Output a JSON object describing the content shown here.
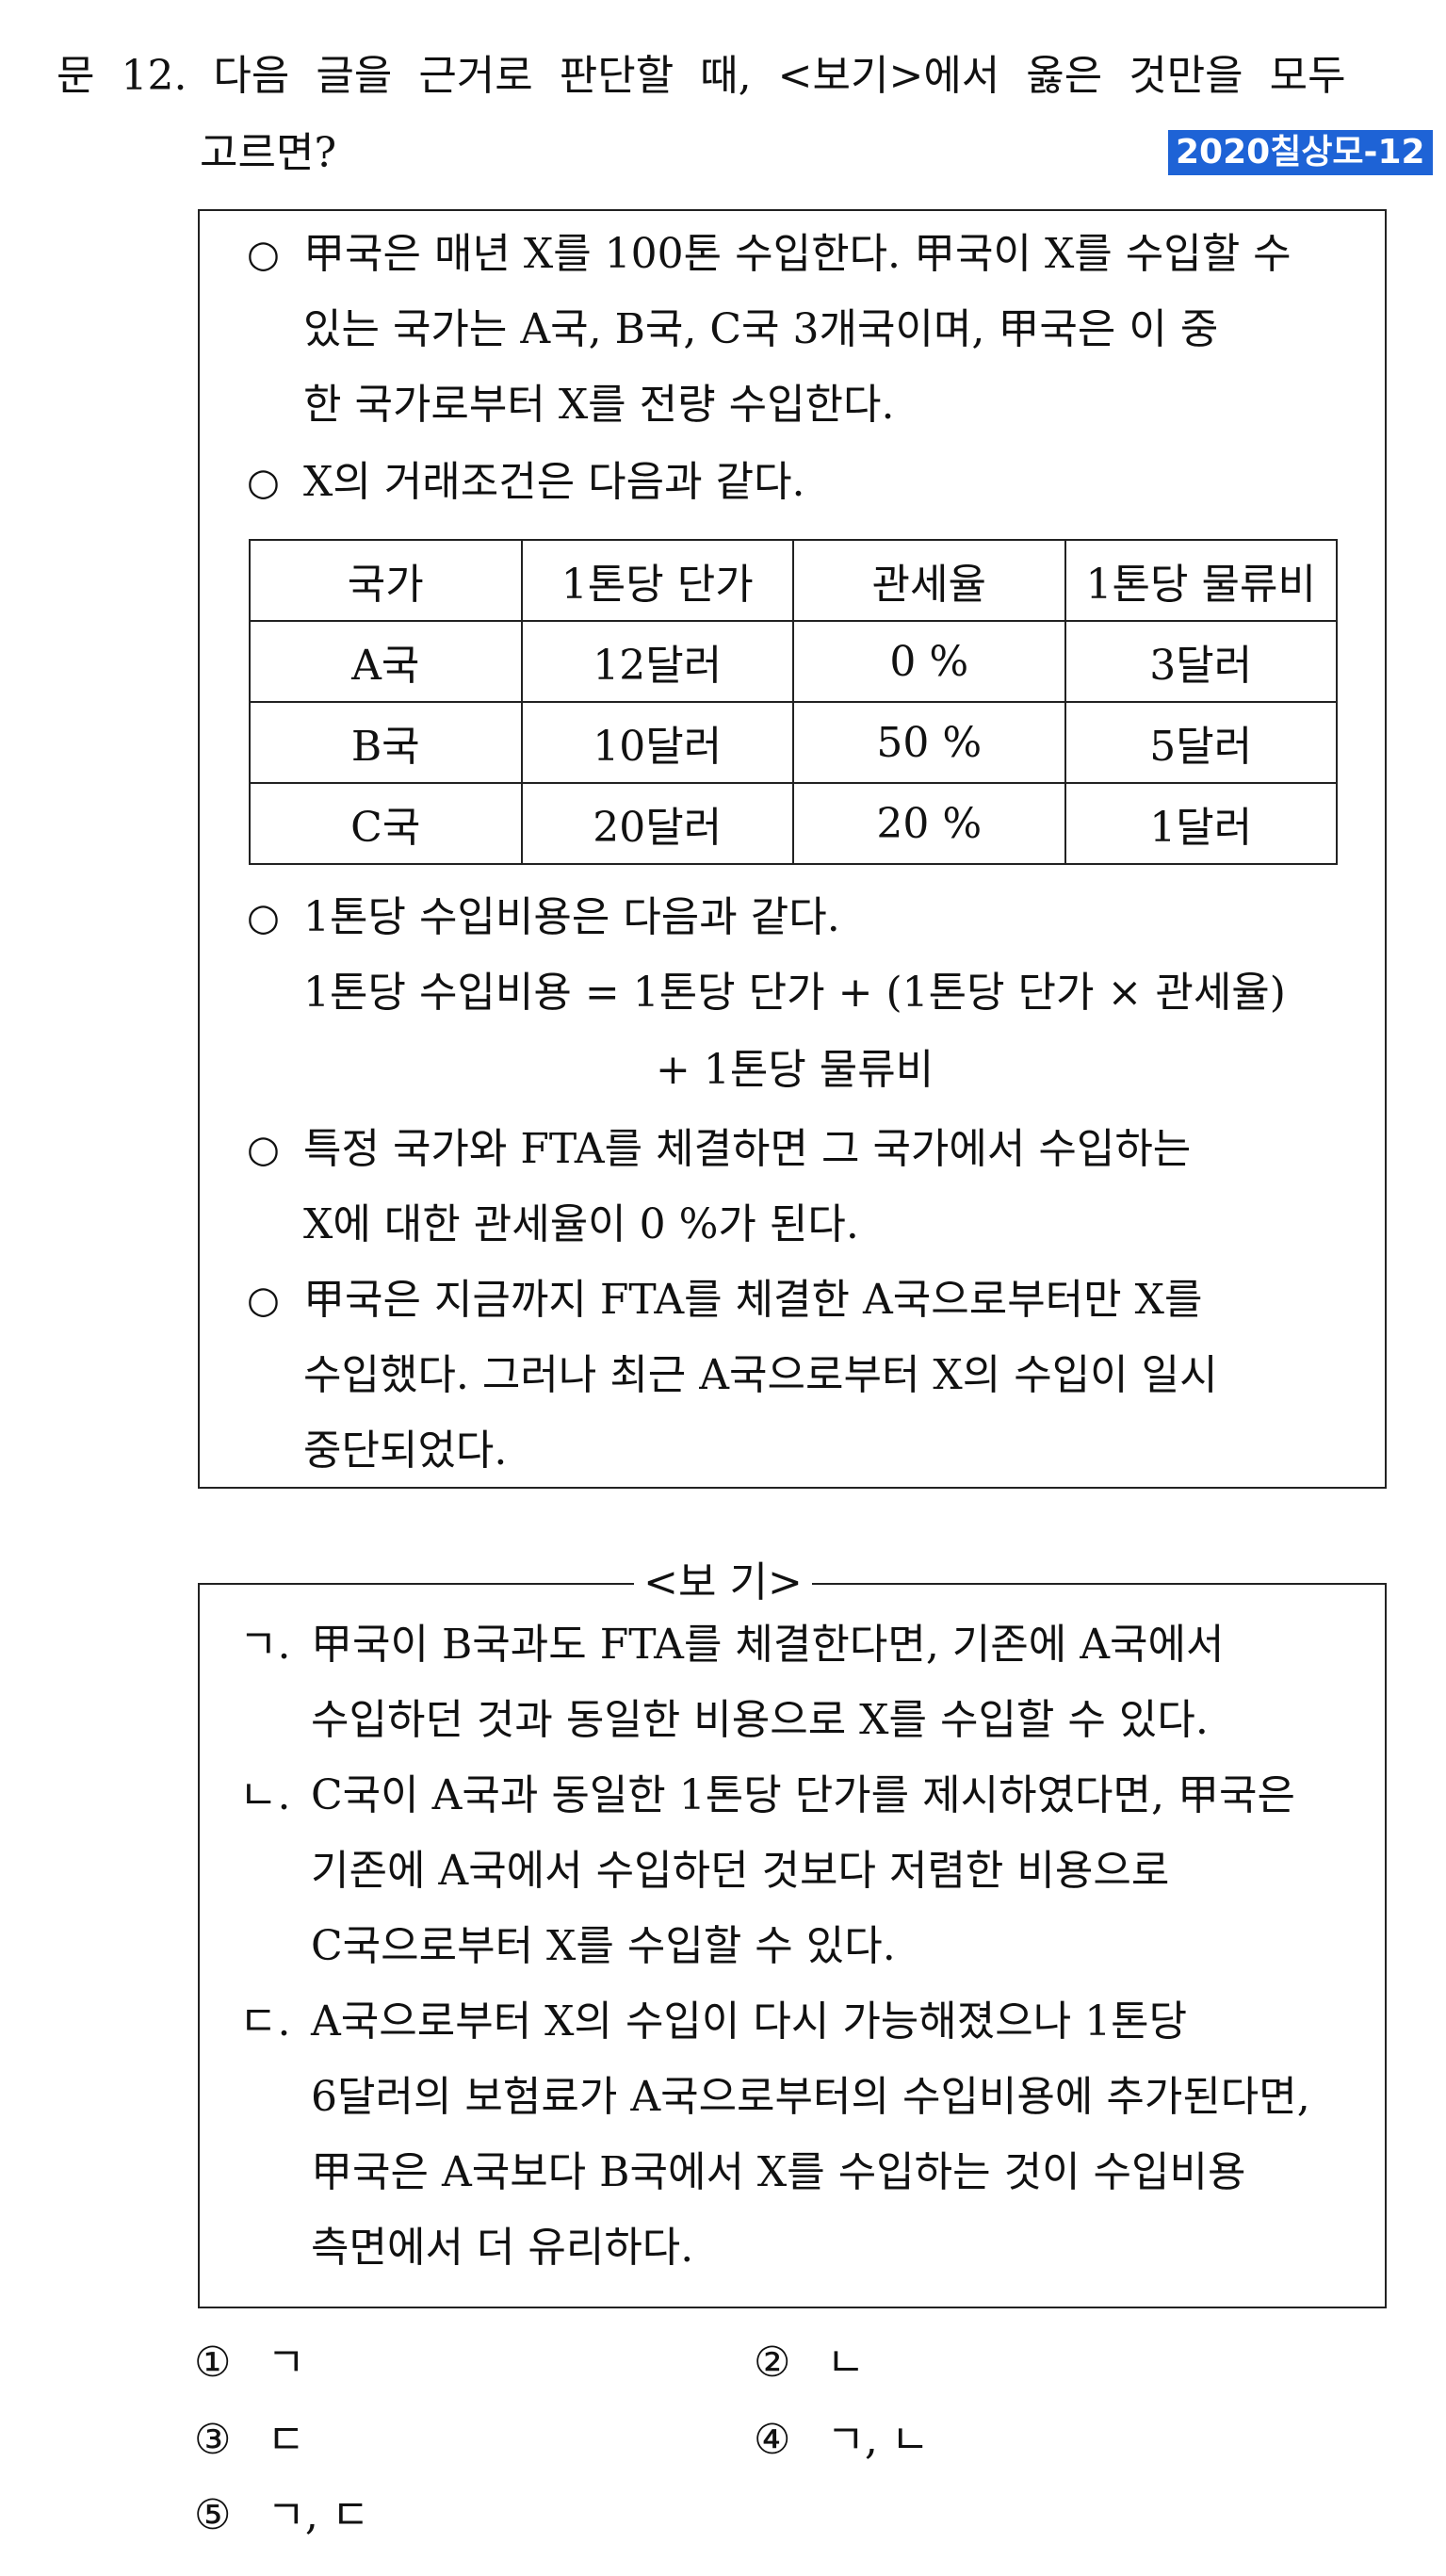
{
  "question": {
    "line1": "문 12. 다음 글을 근거로 판단할 때, <보기>에서 옳은 것만을 모두",
    "line2": "고르면?",
    "badge": "2020칠상모-12"
  },
  "passage": {
    "bullet": "○",
    "b1": [
      "甲국은 매년 X를 100톤 수입한다. 甲국이 X를 수입할 수",
      "있는 국가는 A국, B국, C국 3개국이며, 甲국은 이 중",
      "한 국가로부터 X를 전량 수입한다."
    ],
    "b2": "X의 거래조건은 다음과 같다.",
    "table": {
      "headers": [
        "국가",
        "1톤당 단가",
        "관세율",
        "1톤당 물류비"
      ],
      "rows": [
        [
          "A국",
          "12달러",
          "0 %",
          "3달러"
        ],
        [
          "B국",
          "10달러",
          "50 %",
          "5달러"
        ],
        [
          "C국",
          "20달러",
          "20 %",
          "1달러"
        ]
      ]
    },
    "b3": "1톤당 수입비용은 다음과 같다.",
    "formula1": "1톤당 수입비용 = 1톤당 단가 + (1톤당 단가 × 관세율)",
    "formula2": "+ 1톤당 물류비",
    "b4": [
      "특정 국가와 FTA를 체결하면 그 국가에서 수입하는",
      "X에 대한 관세율이 0 %가 된다."
    ],
    "b5": [
      "甲국은 지금까지 FTA를 체결한 A국으로부터만 X를",
      "수입했다. 그러나 최근 A국으로부터 X의 수입이 일시",
      "중단되었다."
    ]
  },
  "bogi": {
    "title": "<보 기>",
    "items": [
      {
        "mark": "ㄱ.",
        "lines": [
          "甲국이 B국과도 FTA를 체결한다면, 기존에 A국에서",
          "수입하던 것과 동일한 비용으로 X를 수입할 수 있다."
        ]
      },
      {
        "mark": "ㄴ.",
        "lines": [
          "C국이 A국과 동일한 1톤당 단가를 제시하였다면, 甲국은",
          "기존에 A국에서 수입하던 것보다 저렴한 비용으로",
          "C국으로부터 X를 수입할 수 있다."
        ]
      },
      {
        "mark": "ㄷ.",
        "lines": [
          "A국으로부터 X의 수입이 다시 가능해졌으나 1톤당",
          "6달러의 보험료가 A국으로부터의 수입비용에 추가된다면,",
          "甲국은 A국보다 B국에서 X를 수입하는 것이 수입비용",
          "측면에서 더 유리하다."
        ]
      }
    ]
  },
  "choices": [
    {
      "num": "①",
      "text": "ㄱ"
    },
    {
      "num": "②",
      "text": "ㄴ"
    },
    {
      "num": "③",
      "text": "ㄷ"
    },
    {
      "num": "④",
      "text": "ㄱ, ㄴ"
    },
    {
      "num": "⑤",
      "text": "ㄱ, ㄷ"
    }
  ]
}
